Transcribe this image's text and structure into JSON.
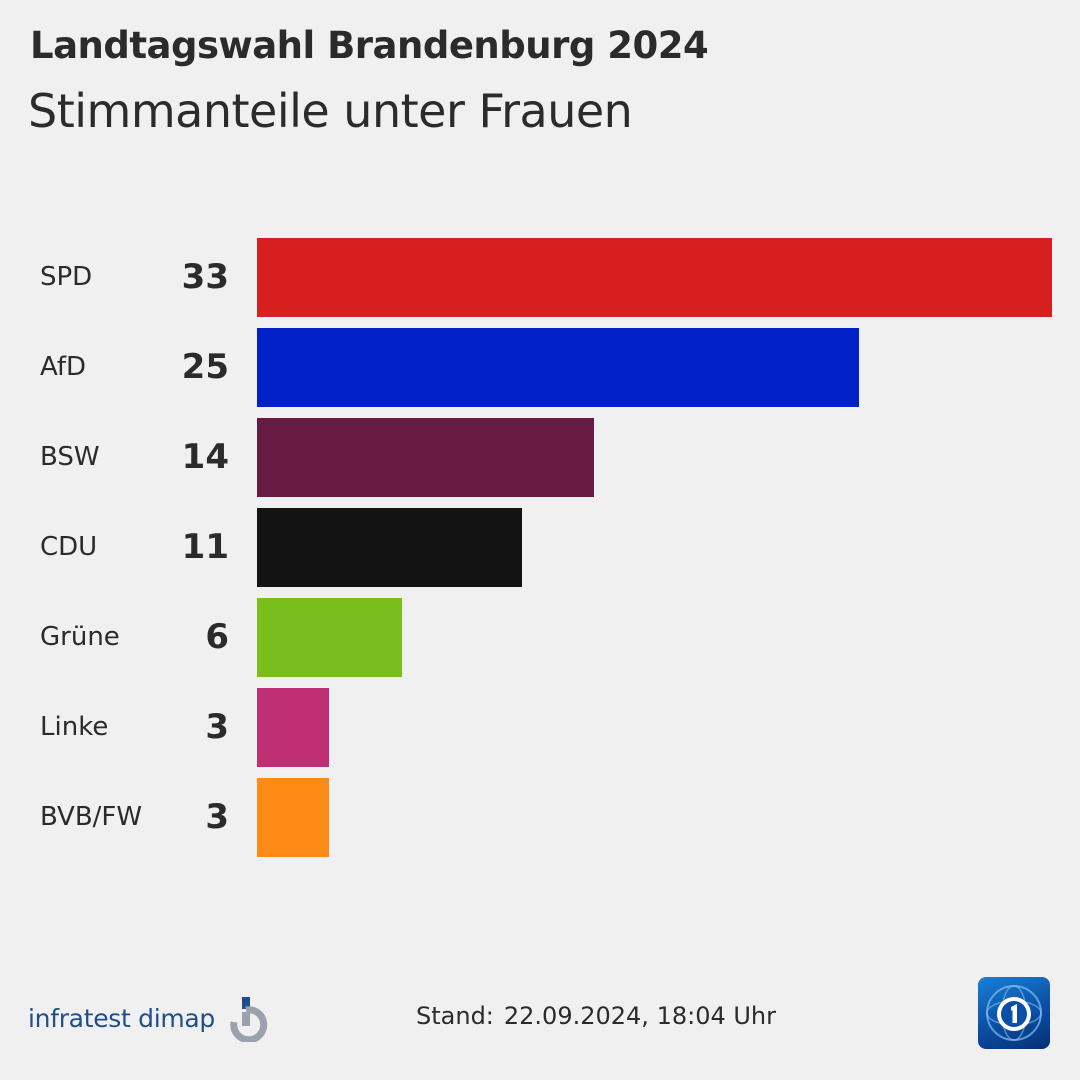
{
  "header": {
    "title": "Landtagswahl Brandenburg 2024",
    "subtitle": "Stimmanteile unter Frauen"
  },
  "chart_data": {
    "type": "bar",
    "orientation": "horizontal",
    "title": "Landtagswahl Brandenburg 2024",
    "subtitle": "Stimmanteile unter Frauen",
    "categories": [
      "SPD",
      "AfD",
      "BSW",
      "CDU",
      "Grüne",
      "Linke",
      "BVB/FW"
    ],
    "values": [
      33,
      25,
      14,
      11,
      6,
      3,
      3
    ],
    "colors": [
      "#d71f20",
      "#0020c8",
      "#671a42",
      "#131313",
      "#7abe1d",
      "#bf2f74",
      "#fd8c17"
    ],
    "xlim": [
      0,
      33
    ],
    "xlabel": "",
    "ylabel": "",
    "grid": false,
    "legend": "none"
  },
  "footer": {
    "source_logo_text": "infratest dimap",
    "stand_label": "Stand:",
    "stand_value": "22.09.2024, 18:04 Uhr"
  }
}
